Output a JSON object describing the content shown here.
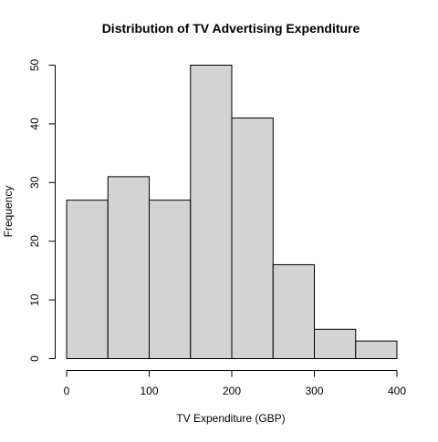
{
  "chart_data": {
    "type": "bar",
    "subtype": "histogram",
    "title": "Distribution of TV Advertising Expenditure",
    "xlabel": "TV Expenditure (GBP)",
    "ylabel": "Frequency",
    "bins": [
      {
        "x0": 0,
        "x1": 50,
        "count": 27
      },
      {
        "x0": 50,
        "x1": 100,
        "count": 31
      },
      {
        "x0": 100,
        "x1": 150,
        "count": 27
      },
      {
        "x0": 150,
        "x1": 200,
        "count": 50
      },
      {
        "x0": 200,
        "x1": 250,
        "count": 41
      },
      {
        "x0": 250,
        "x1": 300,
        "count": 16
      },
      {
        "x0": 300,
        "x1": 350,
        "count": 5
      },
      {
        "x0": 350,
        "x1": 400,
        "count": 3
      }
    ],
    "xlim": [
      0,
      400
    ],
    "ylim": [
      0,
      50
    ],
    "xticks": [
      "0",
      "100",
      "200",
      "300",
      "400"
    ],
    "yticks": [
      "0",
      "10",
      "20",
      "30",
      "40",
      "50"
    ],
    "grid": false,
    "colors": {
      "bar_fill": "#d3d3d3",
      "bar_stroke": "#000000"
    }
  }
}
